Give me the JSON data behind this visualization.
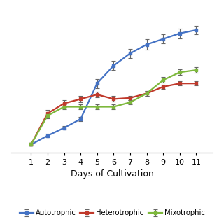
{
  "days": [
    1,
    2,
    3,
    4,
    5,
    6,
    7,
    8,
    9,
    10,
    11
  ],
  "autotrophic": [
    0.05,
    0.13,
    0.2,
    0.28,
    0.6,
    0.76,
    0.87,
    0.95,
    1.0,
    1.05,
    1.08
  ],
  "autotrophic_err": [
    0.01,
    0.015,
    0.015,
    0.02,
    0.04,
    0.04,
    0.04,
    0.045,
    0.04,
    0.045,
    0.04
  ],
  "heterotrophic": [
    0.05,
    0.33,
    0.42,
    0.46,
    0.5,
    0.46,
    0.47,
    0.51,
    0.57,
    0.6,
    0.6
  ],
  "heterotrophic_err": [
    0.01,
    0.03,
    0.03,
    0.03,
    0.025,
    0.025,
    0.02,
    0.02,
    0.02,
    0.02,
    0.02
  ],
  "mixotrophic": [
    0.05,
    0.31,
    0.39,
    0.39,
    0.39,
    0.39,
    0.43,
    0.51,
    0.63,
    0.7,
    0.72
  ],
  "mixotrophic_err": [
    0.01,
    0.025,
    0.02,
    0.02,
    0.02,
    0.02,
    0.02,
    0.02,
    0.025,
    0.025,
    0.025
  ],
  "autotrophic_color": "#4472c4",
  "heterotrophic_color": "#c0392b",
  "mixotrophic_color": "#7db83c",
  "xlabel": "Days of Cultivation",
  "legend_labels": [
    "Autotrophic",
    "Heterotrophic",
    "Mixotrophic"
  ],
  "xlim": [
    -0.2,
    12.0
  ],
  "ylim": [
    -0.02,
    1.25
  ],
  "figsize": [
    3.2,
    3.2
  ],
  "dpi": 100
}
